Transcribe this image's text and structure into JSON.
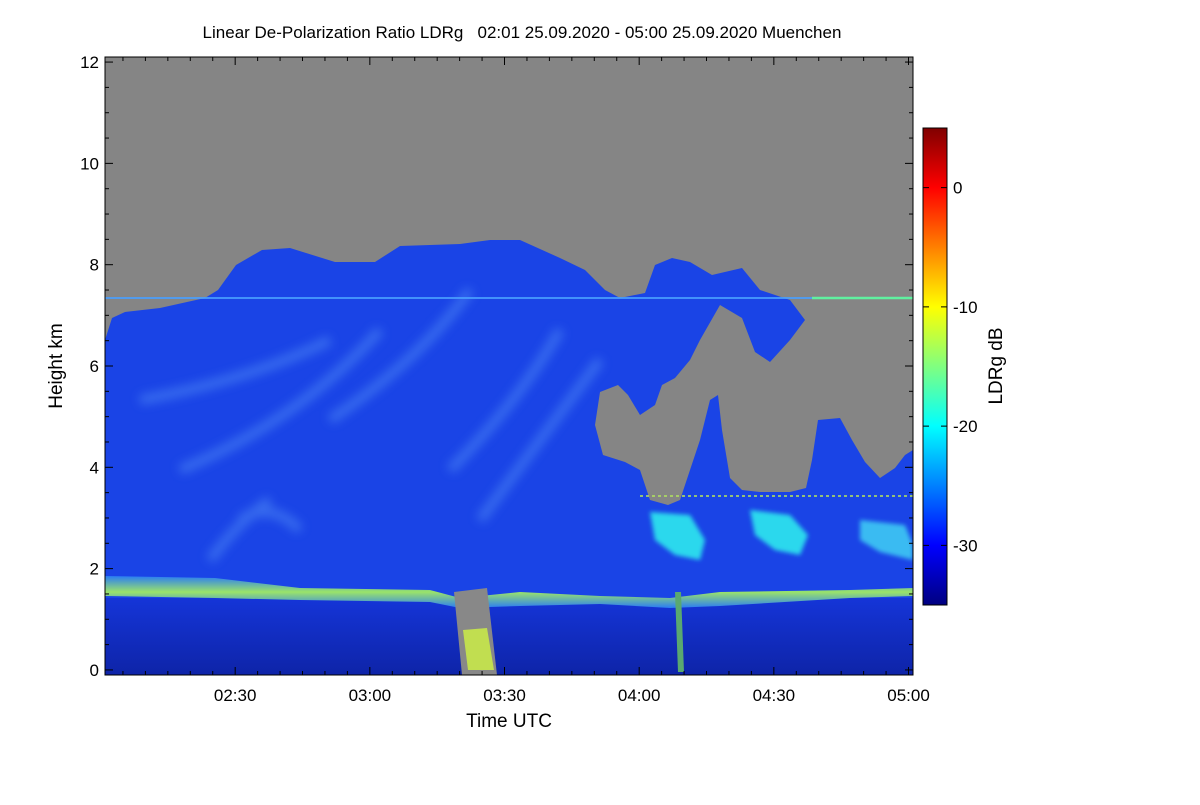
{
  "chart_data": {
    "type": "heatmap",
    "title": "Linear De-Polarization Ratio LDRg   02:01 25.09.2020 - 05:00 25.09.2020 Muenchen",
    "xlabel": "Time UTC",
    "ylabel": "Height km",
    "x_ticks": [
      {
        "label": "02:30",
        "minutes": 150
      },
      {
        "label": "03:00",
        "minutes": 180
      },
      {
        "label": "03:30",
        "minutes": 210
      },
      {
        "label": "04:00",
        "minutes": 240
      },
      {
        "label": "04:30",
        "minutes": 270
      },
      {
        "label": "05:00",
        "minutes": 300
      }
    ],
    "x_range_minutes": [
      121,
      301
    ],
    "y_ticks": [
      0,
      2,
      4,
      6,
      8,
      10,
      12
    ],
    "ylim": [
      -0.1,
      12.1
    ],
    "colorbar": {
      "label": "LDRg dB",
      "range": [
        -35,
        5
      ],
      "ticks": [
        0,
        -10,
        -20,
        -30
      ],
      "colors": [
        "#000080",
        "#0000ff",
        "#0080ff",
        "#00ffff",
        "#80ff80",
        "#ffff00",
        "#ff8000",
        "#ff0000",
        "#800000"
      ]
    },
    "colors": {
      "no_signal": "#858585",
      "background_cloud": "#1a44e6",
      "cloud_base_layer": "#3ab0f0",
      "dense_low_layer": "#1230c8",
      "high_ldr": "#40ffa0"
    },
    "features": {
      "cloud_top_km": 8.3,
      "boundary_layer_top_km": 1.7,
      "thin_layer_km": 7.3,
      "low_layer_band_km": [
        1.55,
        1.8
      ],
      "rain_event_minutes": [
        [
          201,
          205
        ],
        [
          249,
          250
        ]
      ]
    }
  }
}
